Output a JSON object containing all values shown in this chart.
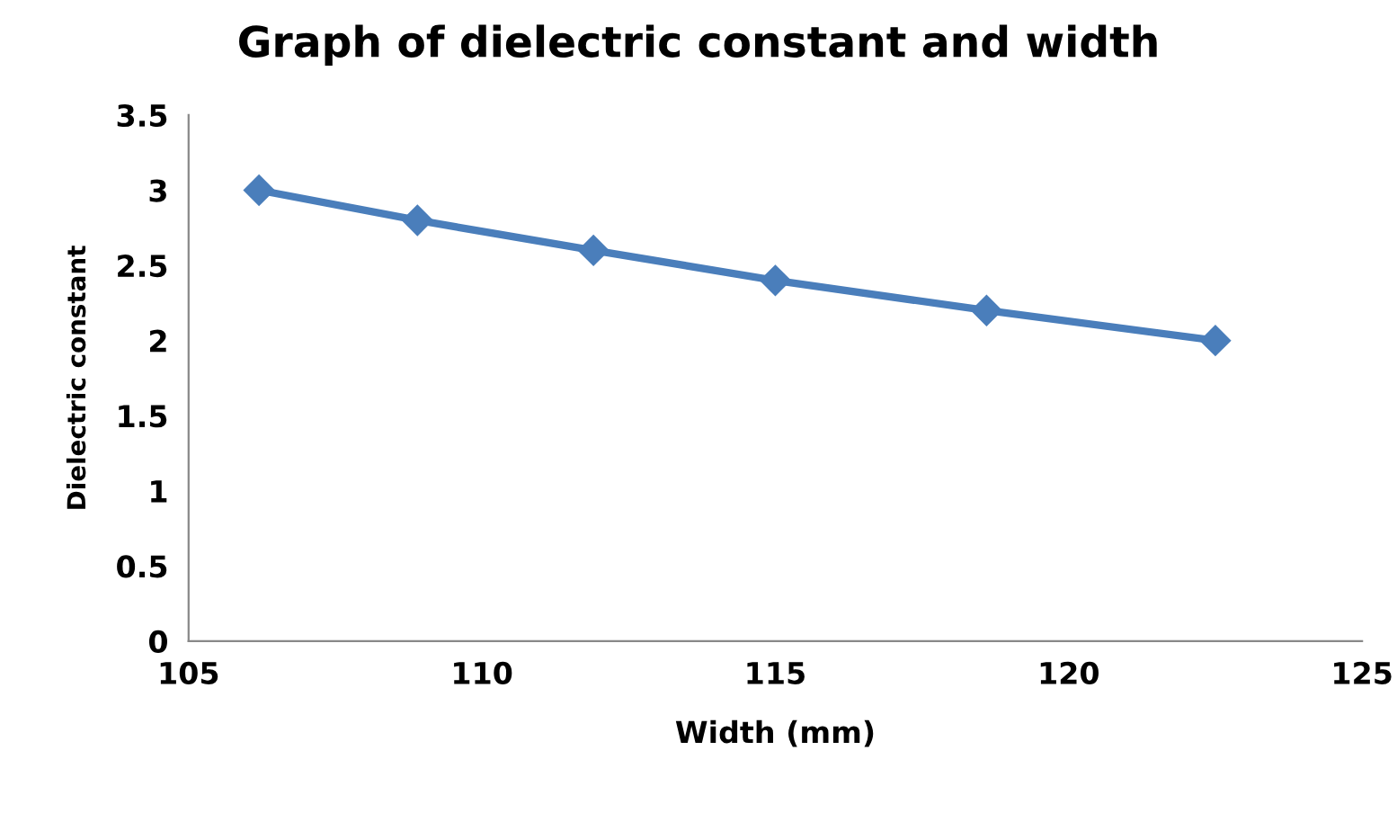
{
  "chart_data": {
    "type": "line",
    "title": "Graph of dielectric constant and width",
    "xlabel": "Width (mm)",
    "ylabel": "Dielectric constant",
    "x": [
      106.2,
      108.9,
      111.9,
      115.0,
      118.6,
      122.5
    ],
    "series": [
      {
        "color": "#4a7ebb",
        "values": [
          3.0,
          2.8,
          2.6,
          2.4,
          2.2,
          2.0
        ]
      }
    ],
    "xlim": [
      105,
      125
    ],
    "xticks": [
      105,
      110,
      115,
      120,
      125
    ],
    "ylim": [
      0,
      3.5
    ],
    "yticks": [
      0,
      0.5,
      1,
      1.5,
      2,
      2.5,
      3,
      3.5
    ],
    "marker": "diamond",
    "line_style": "solid",
    "grid": false,
    "legend": false
  }
}
